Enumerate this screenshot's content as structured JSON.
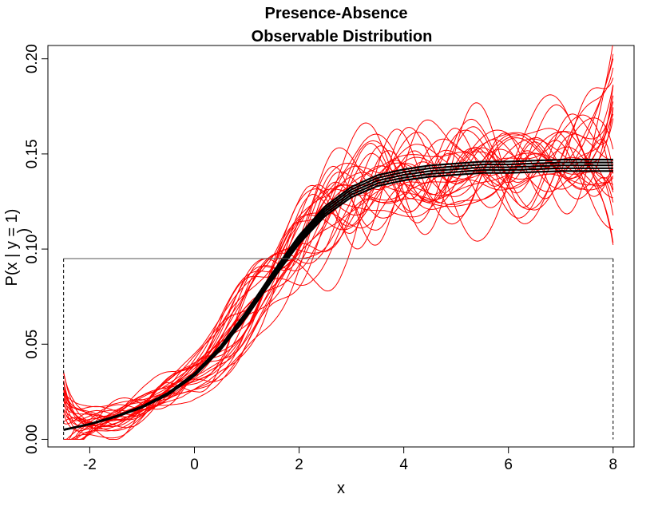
{
  "chart_data": {
    "type": "line",
    "title_line1": "Presence-Absence",
    "title_line2": "Observable Distribution",
    "xlabel": "x",
    "ylabel_main": "P(x | y = 1)",
    "ylabel_extra": ")",
    "xlim": [
      -2.8,
      8.4
    ],
    "ylim": [
      -0.004,
      0.207
    ],
    "x_ticks": [
      -2,
      0,
      2,
      4,
      6,
      8
    ],
    "x_tick_labels": [
      "-2",
      "0",
      "2",
      "4",
      "6",
      "8"
    ],
    "y_ticks": [
      0.0,
      0.05,
      0.1,
      0.15,
      0.2
    ],
    "y_tick_labels": [
      "0.00",
      "0.05",
      "0.10",
      "0.15",
      "0.20"
    ],
    "reference_line": {
      "y": 0.095,
      "x_from": -2.5,
      "x_to": 8.0
    },
    "vertical_dashed_lines": [
      -2.5,
      8.0
    ],
    "mean_curve": {
      "x": [
        -2.5,
        -2.0,
        -1.5,
        -1.0,
        -0.5,
        0.0,
        0.5,
        1.0,
        1.5,
        2.0,
        2.5,
        3.0,
        3.5,
        4.0,
        4.5,
        5.0,
        5.5,
        6.0,
        6.5,
        7.0,
        7.5,
        8.0
      ],
      "y": [
        0.005,
        0.008,
        0.012,
        0.017,
        0.024,
        0.034,
        0.048,
        0.066,
        0.086,
        0.105,
        0.12,
        0.13,
        0.136,
        0.139,
        0.141,
        0.142,
        0.143,
        0.143,
        0.1435,
        0.144,
        0.144,
        0.144
      ]
    },
    "band_halfwidth_end": 0.003,
    "sample_curve_count": 30,
    "colors": {
      "mean": "#000000",
      "samples": "#ff0000",
      "frame": "#000000",
      "reference": "#555555"
    }
  }
}
